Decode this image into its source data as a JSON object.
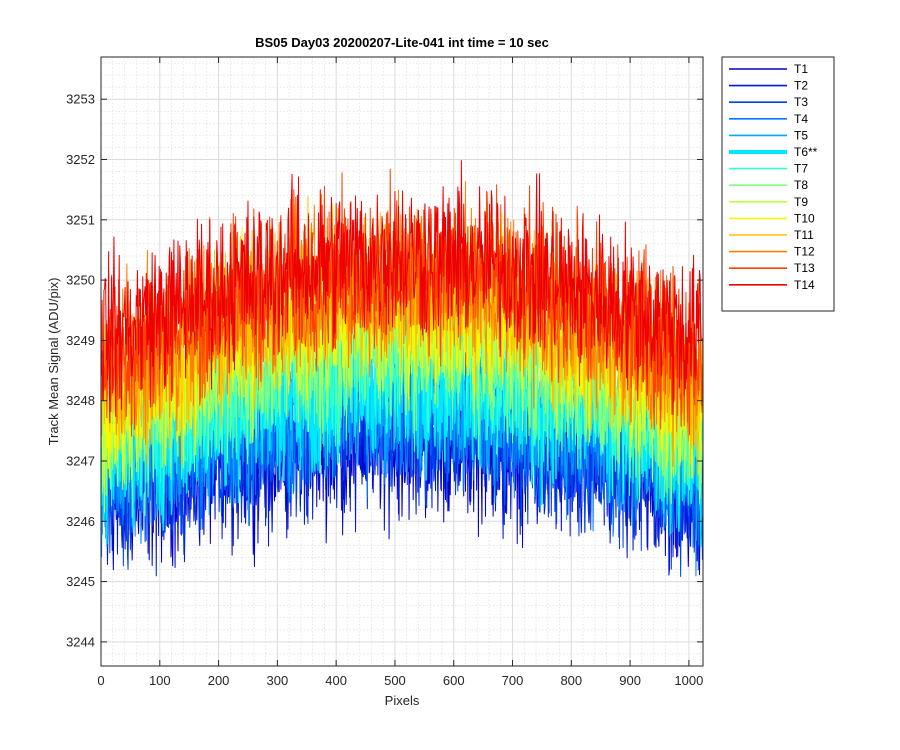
{
  "chart_data": {
    "type": "line",
    "title": "BS05 Day03 20200207-Lite-041 int time = 10 sec",
    "xlabel": "Pixels",
    "ylabel": "Track Mean Signal (ADU/pix)",
    "xlim": [
      0,
      1024
    ],
    "ylim": [
      3243.6,
      3253.7
    ],
    "xticks": [
      0,
      100,
      200,
      300,
      400,
      500,
      600,
      700,
      800,
      900,
      1000
    ],
    "yticks": [
      3244,
      3245,
      3246,
      3247,
      3248,
      3249,
      3250,
      3251,
      3252,
      3253
    ],
    "grid": true,
    "minor_grid": true,
    "legend_position": "outside-top-right",
    "x_points": 1024,
    "noise_amplitude": 1.3,
    "series": [
      {
        "name": "T1",
        "color": "#0000cc",
        "base": 3246.4,
        "peak": 3247.4,
        "highlight": false
      },
      {
        "name": "T2",
        "color": "#0018d8",
        "base": 3246.5,
        "peak": 3247.5,
        "highlight": false
      },
      {
        "name": "T3",
        "color": "#0040ee",
        "base": 3246.6,
        "peak": 3247.7,
        "highlight": false
      },
      {
        "name": "T4",
        "color": "#0078ff",
        "base": 3246.8,
        "peak": 3247.9,
        "highlight": false
      },
      {
        "name": "T5",
        "color": "#00a8ff",
        "base": 3247.0,
        "peak": 3248.1,
        "highlight": false
      },
      {
        "name": "T6**",
        "color": "#00e8ff",
        "base": 3247.2,
        "peak": 3248.4,
        "highlight": true
      },
      {
        "name": "T7",
        "color": "#30ffd0",
        "base": 3247.4,
        "peak": 3248.7,
        "highlight": false
      },
      {
        "name": "T8",
        "color": "#80ff80",
        "base": 3247.6,
        "peak": 3249.0,
        "highlight": false
      },
      {
        "name": "T9",
        "color": "#c0ff40",
        "base": 3247.8,
        "peak": 3249.3,
        "highlight": false
      },
      {
        "name": "T10",
        "color": "#f8f800",
        "base": 3248.0,
        "peak": 3249.6,
        "highlight": false
      },
      {
        "name": "T11",
        "color": "#ffc000",
        "base": 3248.2,
        "peak": 3249.8,
        "highlight": false
      },
      {
        "name": "T12",
        "color": "#ff8000",
        "base": 3248.5,
        "peak": 3250.0,
        "highlight": false
      },
      {
        "name": "T13",
        "color": "#ff4000",
        "base": 3248.8,
        "peak": 3250.2,
        "highlight": false
      },
      {
        "name": "T14",
        "color": "#ee0000",
        "base": 3249.1,
        "peak": 3250.4,
        "highlight": false
      }
    ]
  }
}
